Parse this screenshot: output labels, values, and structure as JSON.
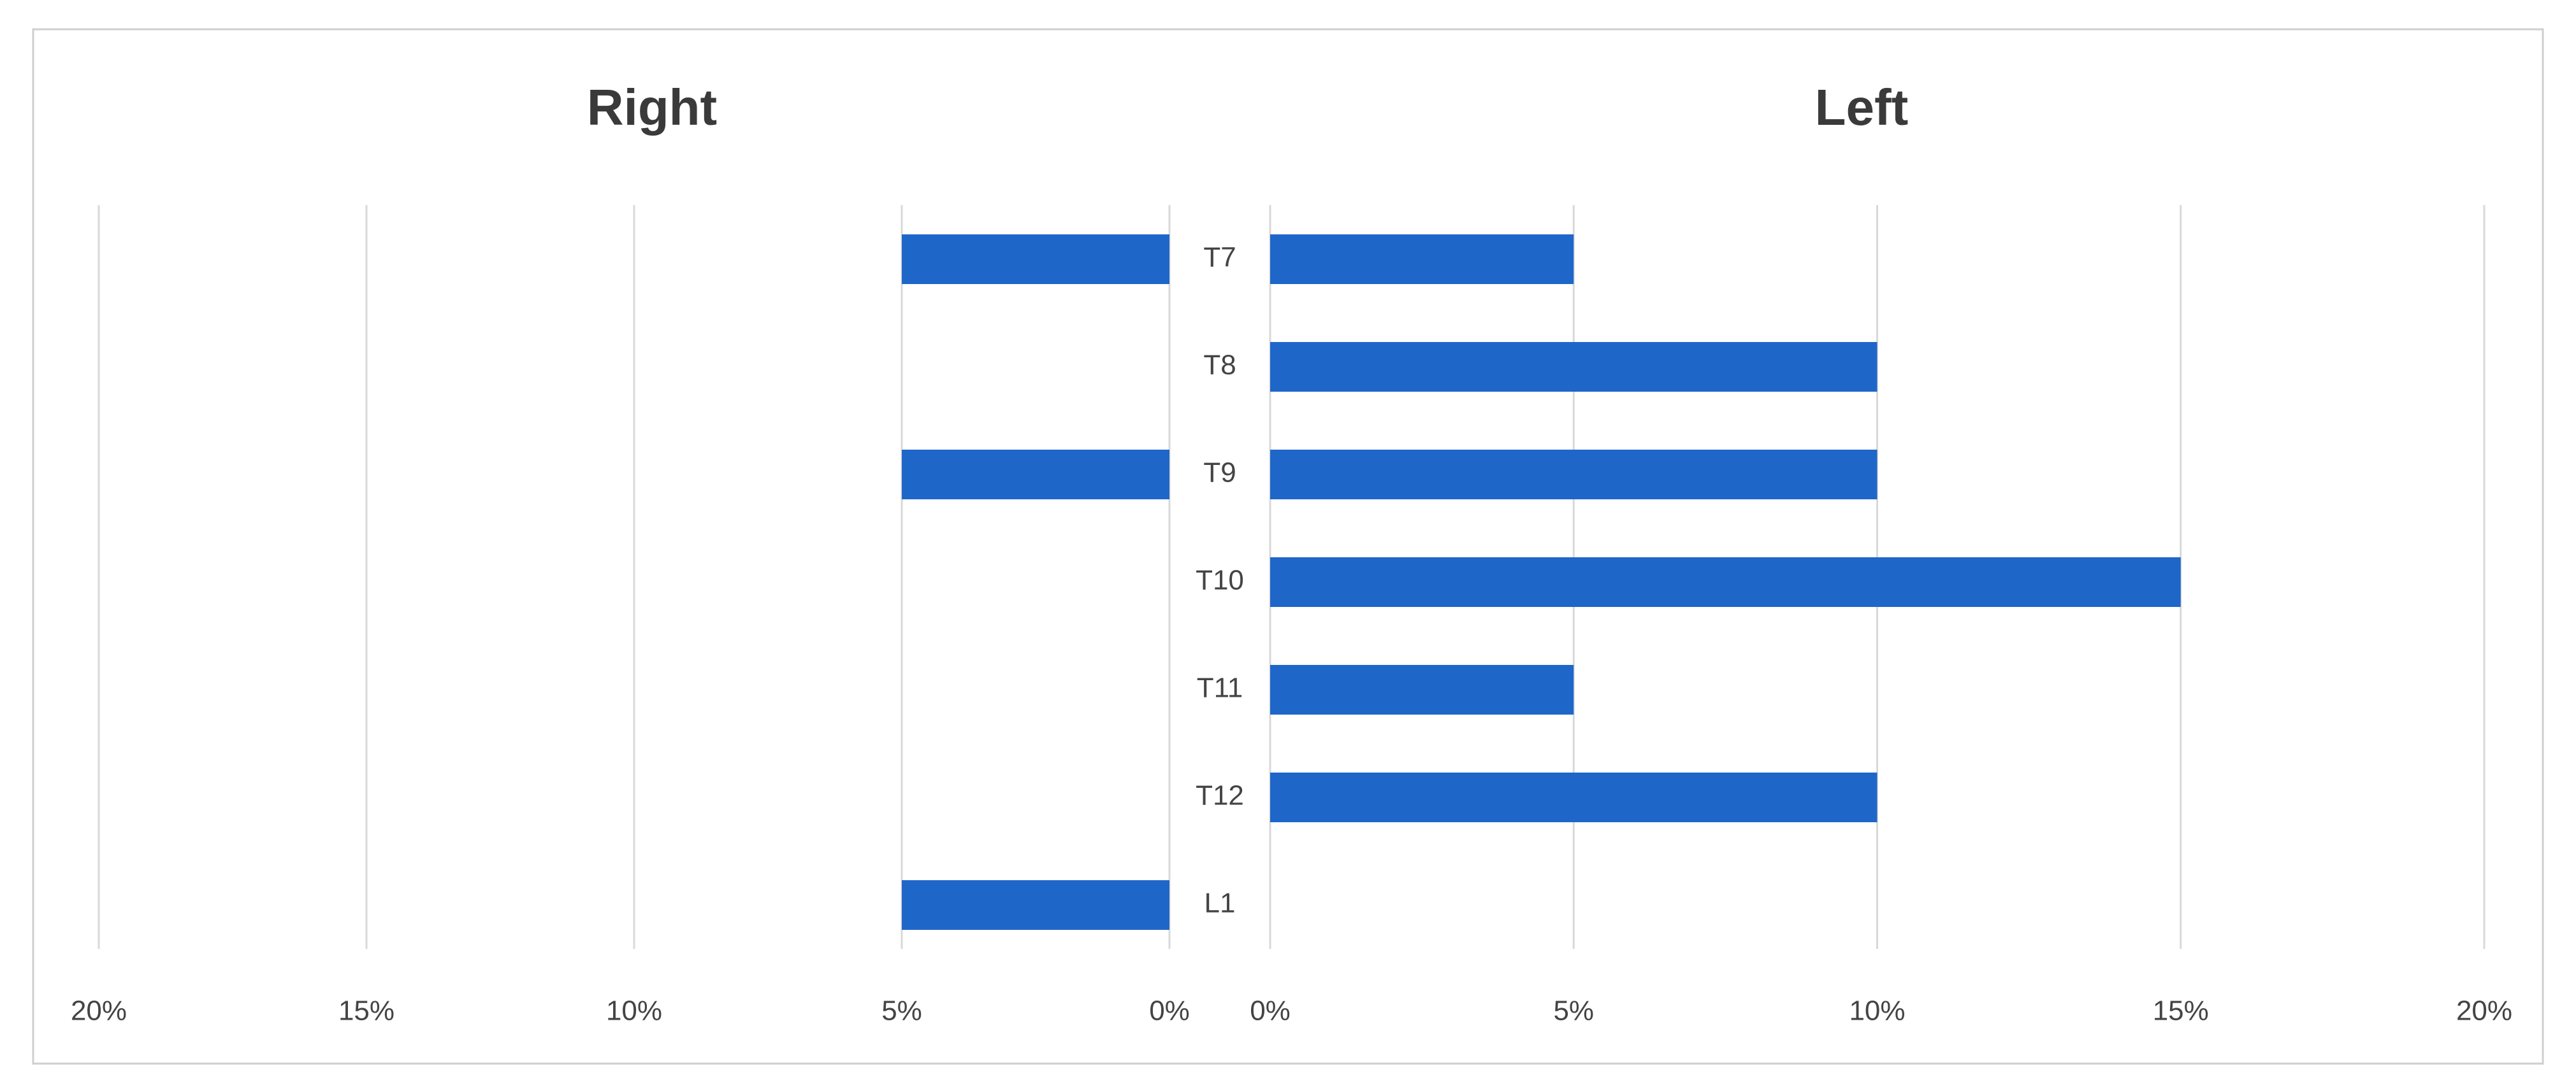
{
  "chart_data": {
    "type": "butterfly",
    "categories": [
      "T7",
      "T8",
      "T9",
      "T10",
      "T11",
      "T12",
      "L1"
    ],
    "series": [
      {
        "name": "Right",
        "color": "#1f66c9",
        "values": [
          5,
          0,
          5,
          0,
          0,
          0,
          5
        ]
      },
      {
        "name": "Left",
        "color": "#1f66c9",
        "values": [
          5,
          10,
          10,
          15,
          5,
          10,
          0
        ]
      }
    ],
    "xlim": [
      0,
      20
    ],
    "xticks": [
      {
        "value": 0,
        "label": "0%"
      },
      {
        "value": 5,
        "label": "5%"
      },
      {
        "value": 10,
        "label": "10%"
      },
      {
        "value": 15,
        "label": "15%"
      },
      {
        "value": 20,
        "label": "20%"
      }
    ],
    "grid": true
  }
}
